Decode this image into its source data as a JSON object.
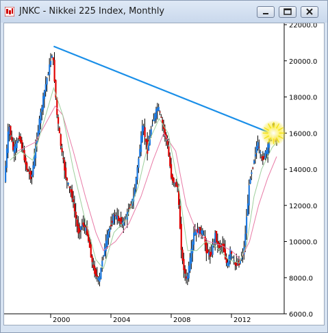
{
  "window": {
    "title": "JNKC - Nikkei 225 Index, Monthly",
    "app_icon": "candlestick-chart-icon",
    "buttons": [
      "minimize-icon",
      "restore-icon",
      "close-icon"
    ]
  },
  "chart_data": {
    "type": "candlestick",
    "title": "JNKC - Nikkei 225 Index, Monthly",
    "ylim": [
      6000,
      22000
    ],
    "xlim": [
      1997.0,
      2015.5
    ],
    "y_ticks": [
      {
        "value": 22000,
        "label": "22000.0"
      },
      {
        "value": 20000,
        "label": "20000.0"
      },
      {
        "value": 18000,
        "label": "18000.0"
      },
      {
        "value": 16000,
        "label": "16000.0"
      },
      {
        "value": 14000,
        "label": "14000.0"
      },
      {
        "value": 12000,
        "label": "12000.0"
      },
      {
        "value": 10000,
        "label": "10000.0"
      },
      {
        "value": 8000,
        "label": "8000.0"
      },
      {
        "value": 6000,
        "label": "6000.0"
      }
    ],
    "x_ticks": [
      {
        "value": 2000,
        "label": "2000"
      },
      {
        "value": 2004,
        "label": "2004"
      },
      {
        "value": 2008,
        "label": "2008"
      },
      {
        "value": 2012,
        "label": "2012"
      }
    ],
    "grid": false,
    "colors": {
      "up": "#1e7ae0",
      "down": "#e00000",
      "wick": "#000000",
      "trendline": "#1a8fe8",
      "ma_fast": "#9ccf9c",
      "ma_slow": "#e87aa6",
      "highlight": "#f5e000"
    },
    "price_path": [
      [
        1997.0,
        13300
      ],
      [
        1997.3,
        16500
      ],
      [
        1997.6,
        15000
      ],
      [
        1998.0,
        15800
      ],
      [
        1998.5,
        14000
      ],
      [
        1998.8,
        13500
      ],
      [
        1999.3,
        16500
      ],
      [
        1999.7,
        18500
      ],
      [
        2000.2,
        20500
      ],
      [
        2000.5,
        17000
      ],
      [
        2000.8,
        15000
      ],
      [
        2001.1,
        13500
      ],
      [
        2001.5,
        12500
      ],
      [
        2001.9,
        10500
      ],
      [
        2002.2,
        11000
      ],
      [
        2002.5,
        10500
      ],
      [
        2002.9,
        8500
      ],
      [
        2003.3,
        7800
      ],
      [
        2003.5,
        9000
      ],
      [
        2003.9,
        10500
      ],
      [
        2004.3,
        11500
      ],
      [
        2004.6,
        11200
      ],
      [
        2004.9,
        11000
      ],
      [
        2005.2,
        11600
      ],
      [
        2005.6,
        12500
      ],
      [
        2005.9,
        14500
      ],
      [
        2006.2,
        16500
      ],
      [
        2006.5,
        15000
      ],
      [
        2006.8,
        16500
      ],
      [
        2007.2,
        17500
      ],
      [
        2007.5,
        16500
      ],
      [
        2007.8,
        15500
      ],
      [
        2008.1,
        13500
      ],
      [
        2008.5,
        13000
      ],
      [
        2008.8,
        9000
      ],
      [
        2009.1,
        7800
      ],
      [
        2009.3,
        8800
      ],
      [
        2009.6,
        10500
      ],
      [
        2009.9,
        10600
      ],
      [
        2010.2,
        10500
      ],
      [
        2010.4,
        9500
      ],
      [
        2010.7,
        9200
      ],
      [
        2011.0,
        10400
      ],
      [
        2011.2,
        9700
      ],
      [
        2011.5,
        9800
      ],
      [
        2011.8,
        8600
      ],
      [
        2012.0,
        9500
      ],
      [
        2012.3,
        8700
      ],
      [
        2012.6,
        8800
      ],
      [
        2012.9,
        9500
      ],
      [
        2013.1,
        11500
      ],
      [
        2013.3,
        13500
      ],
      [
        2013.5,
        14200
      ],
      [
        2013.8,
        15500
      ],
      [
        2014.1,
        14500
      ],
      [
        2014.4,
        15000
      ],
      [
        2014.6,
        15500
      ],
      [
        2014.8,
        16300
      ],
      [
        2015.0,
        15700
      ]
    ],
    "ma_fast_path": [
      [
        1997.3,
        14500
      ],
      [
        1998.0,
        15000
      ],
      [
        1998.8,
        14500
      ],
      [
        1999.5,
        16500
      ],
      [
        2000.2,
        18500
      ],
      [
        2000.8,
        17000
      ],
      [
        2001.5,
        14000
      ],
      [
        2002.2,
        11500
      ],
      [
        2003.0,
        9000
      ],
      [
        2003.5,
        8500
      ],
      [
        2004.2,
        10500
      ],
      [
        2005.0,
        11200
      ],
      [
        2005.8,
        13000
      ],
      [
        2006.5,
        15500
      ],
      [
        2007.2,
        16800
      ],
      [
        2007.8,
        16000
      ],
      [
        2008.5,
        13000
      ],
      [
        2009.1,
        9500
      ],
      [
        2009.7,
        9500
      ],
      [
        2010.3,
        10000
      ],
      [
        2011.0,
        9700
      ],
      [
        2011.8,
        9000
      ],
      [
        2012.5,
        8800
      ],
      [
        2013.0,
        9800
      ],
      [
        2013.5,
        12500
      ],
      [
        2014.0,
        14000
      ],
      [
        2014.7,
        15200
      ],
      [
        2015.0,
        15500
      ]
    ],
    "ma_slow_path": [
      [
        1997.8,
        15000
      ],
      [
        1999.0,
        15500
      ],
      [
        2000.3,
        17500
      ],
      [
        2000.8,
        17000
      ],
      [
        2001.5,
        15000
      ],
      [
        2002.3,
        12500
      ],
      [
        2003.0,
        10500
      ],
      [
        2003.5,
        9500
      ],
      [
        2004.3,
        10000
      ],
      [
        2005.2,
        11000
      ],
      [
        2006.0,
        12500
      ],
      [
        2006.8,
        14500
      ],
      [
        2007.5,
        16000
      ],
      [
        2008.3,
        15000
      ],
      [
        2009.0,
        12000
      ],
      [
        2009.7,
        10500
      ],
      [
        2010.5,
        10000
      ],
      [
        2011.3,
        9800
      ],
      [
        2012.0,
        9500
      ],
      [
        2012.6,
        9000
      ],
      [
        2013.2,
        10000
      ],
      [
        2013.8,
        12000
      ],
      [
        2014.4,
        13500
      ],
      [
        2015.0,
        14700
      ]
    ],
    "trendline": [
      [
        2000.2,
        20800
      ],
      [
        2015.2,
        15800
      ]
    ],
    "highlight_point": [
      2014.8,
      16000
    ]
  }
}
